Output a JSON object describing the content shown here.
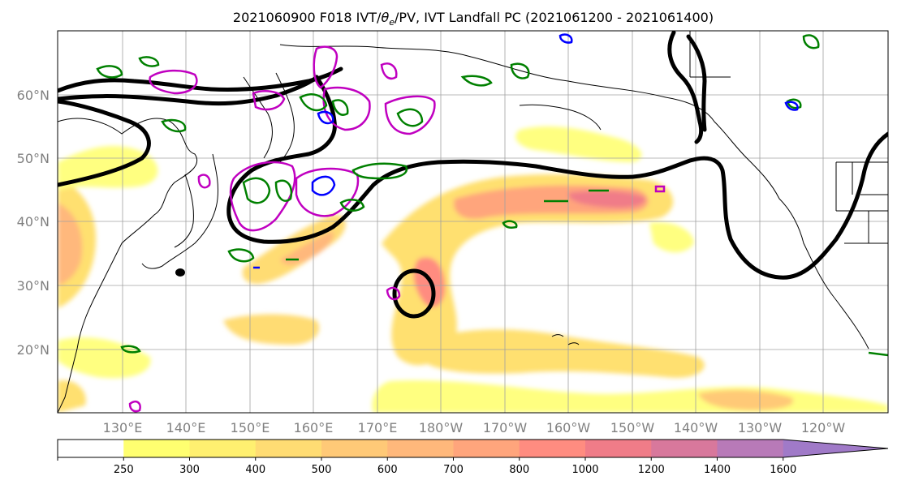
{
  "title": {
    "pre": "2021060900 F018 IVT/",
    "theta": "θ",
    "sub": "e",
    "post": "/PV, IVT Landfall PC (2021061200 - 2021061400)"
  },
  "map": {
    "lat_labels": [
      "60°N",
      "50°N",
      "40°N",
      "30°N",
      "20°N"
    ],
    "lon_labels": [
      "130°E",
      "140°E",
      "150°E",
      "160°E",
      "170°E",
      "180°W",
      "170°W",
      "160°W",
      "150°W",
      "140°W",
      "130°W",
      "120°W"
    ],
    "colors": {
      "contour_thetae": "#000000",
      "contour_pv_green": "#008000",
      "contour_pv_blue": "#0000ff",
      "contour_magenta": "#c000c0",
      "gridlines": "#a0a0a0",
      "coastlines": "#000000"
    }
  },
  "colorbar": {
    "ticks": [
      "250",
      "300",
      "400",
      "500",
      "600",
      "700",
      "800",
      "1000",
      "1200",
      "1400",
      "1600"
    ],
    "colors": [
      "#ffff70",
      "#fff070",
      "#ffdc73",
      "#ffc977",
      "#ffb87b",
      "#ffa57c",
      "#ff8c80",
      "#f07c88",
      "#d8789c",
      "#b87ab8",
      "#a07ac8"
    ],
    "extend": "max"
  }
}
